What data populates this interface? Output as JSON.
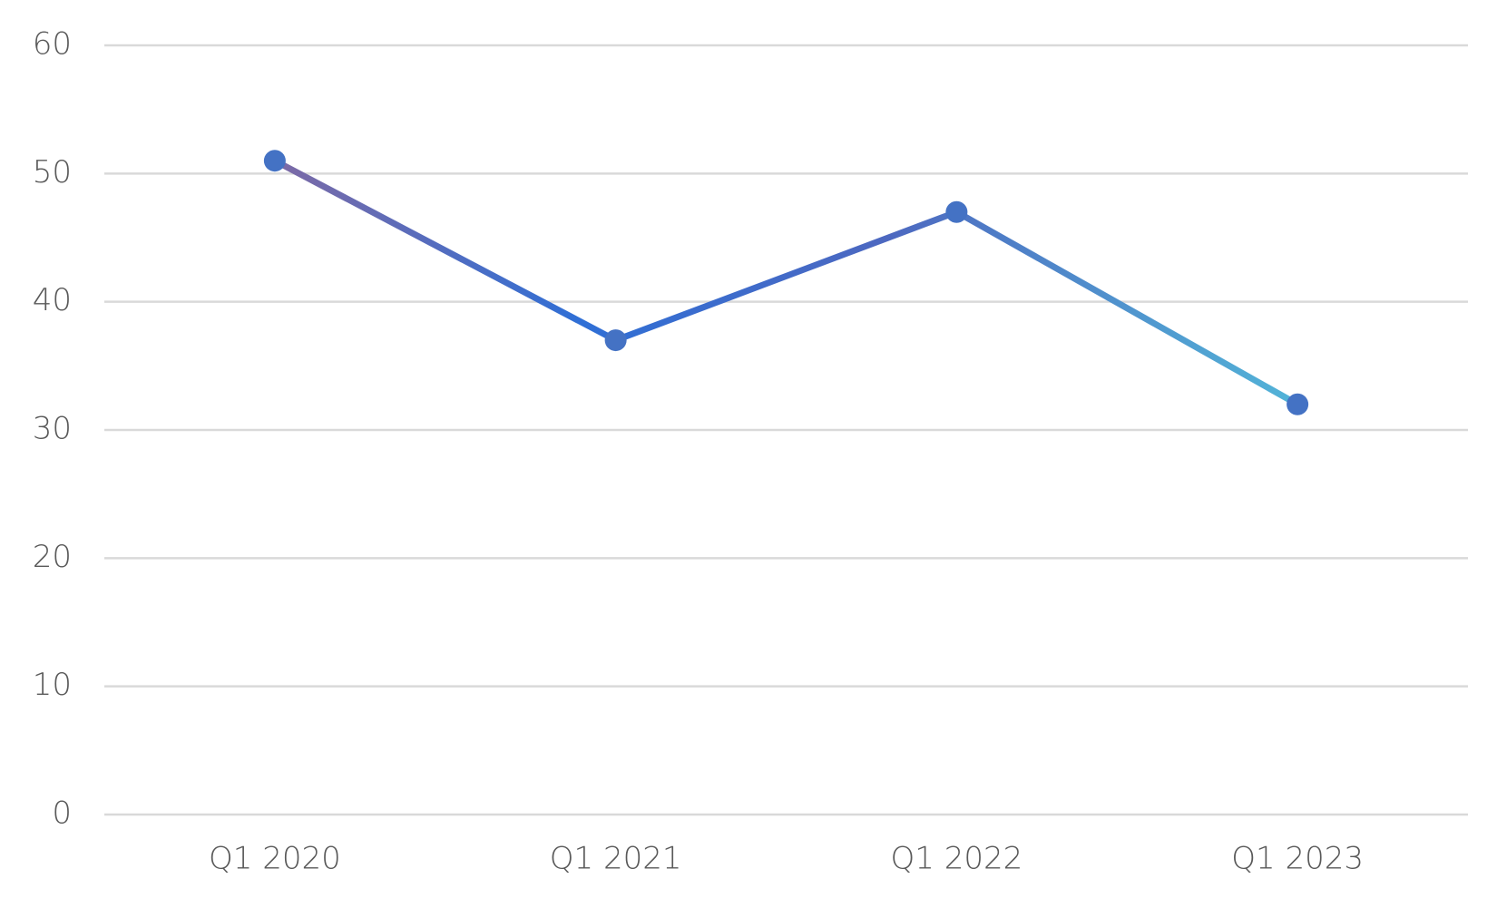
{
  "chart_data": {
    "type": "line",
    "categories": [
      "Q1 2020",
      "Q1 2021",
      "Q1 2022",
      "Q1 2023"
    ],
    "values": [
      51,
      37,
      47,
      32
    ],
    "color": "#4472c4",
    "ylim": [
      0,
      60
    ],
    "yticks": [
      0,
      10,
      20,
      30,
      40,
      50,
      60
    ],
    "grid": true
  }
}
